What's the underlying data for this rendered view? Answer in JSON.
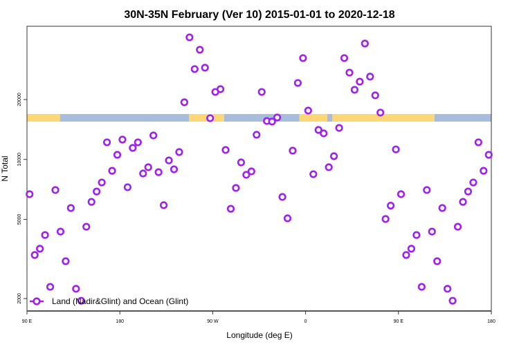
{
  "chart_data": {
    "type": "scatter",
    "title": "30N-35N February (Ver 10)   2015-01-01 to 2020-12-18",
    "xlabel": "Longitude (deg E)",
    "ylabel": "N Total",
    "xlim": [
      90,
      540
    ],
    "ylim_log": [
      1800,
      54000
    ],
    "yscale": "log",
    "x_ticks": [
      {
        "value": 90,
        "label": "90 E"
      },
      {
        "value": 180,
        "label": "180"
      },
      {
        "value": 270,
        "label": "90 W"
      },
      {
        "value": 360,
        "label": "0"
      },
      {
        "value": 450,
        "label": "90 E"
      },
      {
        "value": 540,
        "label": "180"
      }
    ],
    "y_ticks": [
      {
        "value": 2000,
        "label": "2000"
      },
      {
        "value": 5000,
        "label": "5000"
      },
      {
        "value": 10000,
        "label": "10000"
      },
      {
        "value": 20000,
        "label": "20000"
      }
    ],
    "legend": {
      "label": "Land (Nadir&Glint) and Ocean (Glint)",
      "position": "bottom-left"
    },
    "colors": {
      "series": "#A020F0",
      "land": "#FDD675",
      "ocean": "#A7BDDB"
    },
    "land_mask_segments": [
      {
        "type": "land",
        "from": 90,
        "to": 122
      },
      {
        "type": "ocean",
        "from": 122,
        "to": 247
      },
      {
        "type": "land",
        "from": 247,
        "to": 281
      },
      {
        "type": "ocean",
        "from": 281,
        "to": 354
      },
      {
        "type": "land",
        "from": 354,
        "to": 381
      },
      {
        "type": "ocean",
        "from": 381,
        "to": 386
      },
      {
        "type": "land",
        "from": 386,
        "to": 485
      },
      {
        "type": "ocean",
        "from": 485,
        "to": 540
      }
    ],
    "series": [
      {
        "name": "Land (Nadir&Glint) and Ocean (Glint)",
        "x_start": 92.5,
        "x_step": 5,
        "values": [
          6690,
          3310,
          3560,
          4170,
          2290,
          7020,
          4340,
          3080,
          5700,
          2240,
          1950,
          4590,
          6120,
          6900,
          7660,
          12190,
          8770,
          10550,
          12580,
          7250,
          11430,
          12190,
          8500,
          9140,
          13200,
          8630,
          5890,
          9890,
          8920,
          10890,
          19370,
          41050,
          28450,
          35570,
          28900,
          16110,
          21830,
          22550,
          11160,
          5650,
          7190,
          9660,
          8370,
          8710,
          13300,
          21830,
          15600,
          15500,
          16250,
          6480,
          5060,
          11070,
          24220,
          32300,
          17600,
          8430,
          14070,
          13520,
          9140,
          10380,
          14400,
          32300,
          27300,
          22380,
          24600,
          38220,
          26060,
          20990,
          17190,
          5020,
          5860,
          11230,
          6690,
          3310,
          3560,
          4170,
          2290,
          7020,
          4340,
          3080,
          5700,
          2240,
          1950,
          4590,
          6120,
          6900,
          7660,
          12190,
          8770,
          10550
        ]
      }
    ]
  }
}
